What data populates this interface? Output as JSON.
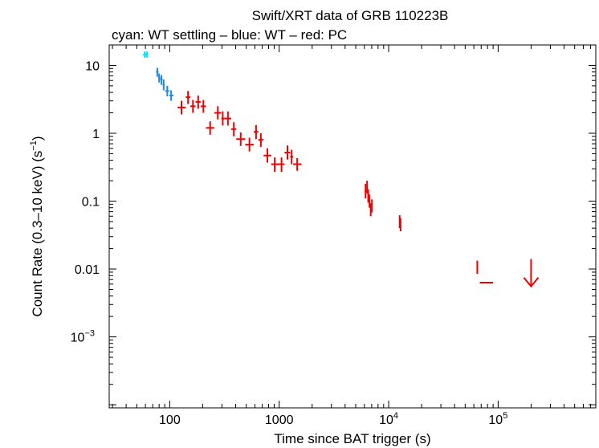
{
  "chart_data": {
    "type": "scatter",
    "title": "Swift/XRT data of GRB 110223B",
    "subtitle": "cyan: WT settling – blue: WT – red: PC",
    "xlabel": "Time since BAT trigger (s)",
    "ylabel_main": "Count Rate (0.3–10 keV) (s",
    "ylabel_sup": "−1",
    "ylabel_close": ")",
    "xscale": "log",
    "yscale": "log",
    "xlim": [
      28,
      780000
    ],
    "ylim": [
      9e-05,
      20
    ],
    "x_ticks": [
      {
        "value": 100,
        "label": "100"
      },
      {
        "value": 1000,
        "label": "1000"
      },
      {
        "value": 10000,
        "base": "10",
        "exp": "4"
      },
      {
        "value": 100000,
        "base": "10",
        "exp": "5"
      }
    ],
    "y_ticks": [
      {
        "value": 10,
        "label": "10"
      },
      {
        "value": 1,
        "label": "1"
      },
      {
        "value": 0.1,
        "label": "0.1"
      },
      {
        "value": 0.01,
        "label": "0.01"
      },
      {
        "value": 0.001,
        "base": "10",
        "exp": "−3"
      }
    ],
    "series": [
      {
        "name": "WT settling",
        "color": "#00e5ff",
        "points": [
          {
            "x": 59,
            "xlo": 57,
            "xhi": 61,
            "y": 14.5,
            "ylo": 13.0,
            "yhi": 16.0
          },
          {
            "x": 62,
            "xlo": 60.5,
            "xhi": 63.5,
            "y": 14.5,
            "ylo": 13.0,
            "yhi": 16.0
          }
        ]
      },
      {
        "name": "WT",
        "color": "#1e88e5",
        "points": [
          {
            "x": 77,
            "xlo": 75,
            "xhi": 79,
            "y": 8.0,
            "ylo": 6.8,
            "yhi": 9.2
          },
          {
            "x": 80,
            "xlo": 78.5,
            "xhi": 82,
            "y": 6.5,
            "ylo": 5.6,
            "yhi": 7.6
          },
          {
            "x": 84,
            "xlo": 82,
            "xhi": 86,
            "y": 6.2,
            "ylo": 5.2,
            "yhi": 7.2
          },
          {
            "x": 88,
            "xlo": 86,
            "xhi": 90,
            "y": 5.2,
            "ylo": 4.3,
            "yhi": 6.2
          },
          {
            "x": 95,
            "xlo": 91,
            "xhi": 99,
            "y": 4.2,
            "ylo": 3.5,
            "yhi": 5.0
          },
          {
            "x": 103,
            "xlo": 99,
            "xhi": 108,
            "y": 3.6,
            "ylo": 3.0,
            "yhi": 4.3
          }
        ]
      },
      {
        "name": "PC",
        "color": "#ee0000",
        "points": [
          {
            "x": 128,
            "xlo": 118,
            "xhi": 140,
            "y": 2.4,
            "ylo": 1.9,
            "yhi": 3.0
          },
          {
            "x": 147,
            "xlo": 140,
            "xhi": 154,
            "y": 3.4,
            "ylo": 2.7,
            "yhi": 4.2
          },
          {
            "x": 163,
            "xlo": 154,
            "xhi": 172,
            "y": 2.5,
            "ylo": 2.0,
            "yhi": 3.1
          },
          {
            "x": 182,
            "xlo": 172,
            "xhi": 192,
            "y": 2.9,
            "ylo": 2.3,
            "yhi": 3.6
          },
          {
            "x": 203,
            "xlo": 192,
            "xhi": 214,
            "y": 2.5,
            "ylo": 2.0,
            "yhi": 3.1
          },
          {
            "x": 234,
            "xlo": 214,
            "xhi": 255,
            "y": 1.2,
            "ylo": 0.95,
            "yhi": 1.5
          },
          {
            "x": 275,
            "xlo": 255,
            "xhi": 296,
            "y": 2.0,
            "ylo": 1.6,
            "yhi": 2.5
          },
          {
            "x": 305,
            "xlo": 296,
            "xhi": 315,
            "y": 1.65,
            "ylo": 1.3,
            "yhi": 2.1
          },
          {
            "x": 340,
            "xlo": 315,
            "xhi": 365,
            "y": 1.65,
            "ylo": 1.3,
            "yhi": 2.1
          },
          {
            "x": 385,
            "xlo": 365,
            "xhi": 405,
            "y": 1.15,
            "ylo": 0.9,
            "yhi": 1.45
          },
          {
            "x": 445,
            "xlo": 405,
            "xhi": 490,
            "y": 0.82,
            "ylo": 0.65,
            "yhi": 1.03
          },
          {
            "x": 535,
            "xlo": 490,
            "xhi": 585,
            "y": 0.68,
            "ylo": 0.54,
            "yhi": 0.86
          },
          {
            "x": 615,
            "xlo": 585,
            "xhi": 645,
            "y": 1.05,
            "ylo": 0.82,
            "yhi": 1.32
          },
          {
            "x": 680,
            "xlo": 645,
            "xhi": 720,
            "y": 0.8,
            "ylo": 0.63,
            "yhi": 1.0
          },
          {
            "x": 780,
            "xlo": 720,
            "xhi": 845,
            "y": 0.47,
            "ylo": 0.37,
            "yhi": 0.6
          },
          {
            "x": 910,
            "xlo": 845,
            "xhi": 980,
            "y": 0.35,
            "ylo": 0.27,
            "yhi": 0.44
          },
          {
            "x": 1050,
            "xlo": 980,
            "xhi": 1120,
            "y": 0.35,
            "ylo": 0.27,
            "yhi": 0.44
          },
          {
            "x": 1190,
            "xlo": 1120,
            "xhi": 1260,
            "y": 0.52,
            "ylo": 0.41,
            "yhi": 0.66
          },
          {
            "x": 1300,
            "xlo": 1260,
            "xhi": 1340,
            "y": 0.45,
            "ylo": 0.35,
            "yhi": 0.57
          },
          {
            "x": 1460,
            "xlo": 1340,
            "xhi": 1600,
            "y": 0.35,
            "ylo": 0.28,
            "yhi": 0.43
          },
          {
            "x": 6150,
            "xlo": 6020,
            "xhi": 6280,
            "y": 0.14,
            "ylo": 0.11,
            "yhi": 0.18
          },
          {
            "x": 6350,
            "xlo": 6280,
            "xhi": 6420,
            "y": 0.16,
            "ylo": 0.13,
            "yhi": 0.2
          },
          {
            "x": 6500,
            "xlo": 6420,
            "xhi": 6580,
            "y": 0.12,
            "ylo": 0.095,
            "yhi": 0.15
          },
          {
            "x": 6670,
            "xlo": 6580,
            "xhi": 6760,
            "y": 0.1,
            "ylo": 0.08,
            "yhi": 0.125
          },
          {
            "x": 6850,
            "xlo": 6760,
            "xhi": 6940,
            "y": 0.075,
            "ylo": 0.06,
            "yhi": 0.093
          },
          {
            "x": 7030,
            "xlo": 6940,
            "xhi": 7120,
            "y": 0.085,
            "ylo": 0.068,
            "yhi": 0.106
          },
          {
            "x": 12600,
            "xlo": 12450,
            "xhi": 12750,
            "y": 0.05,
            "ylo": 0.04,
            "yhi": 0.062
          },
          {
            "x": 12850,
            "xlo": 12750,
            "xhi": 12950,
            "y": 0.045,
            "ylo": 0.036,
            "yhi": 0.056
          },
          {
            "x": 64500,
            "xlo": 63500,
            "xhi": 65500,
            "y": 0.0108,
            "ylo": 0.0085,
            "yhi": 0.0133
          },
          {
            "x": 78000,
            "xlo": 68000,
            "xhi": 90000,
            "y": 0.0063,
            "ylo": 0.0063,
            "yhi": 0.0063
          }
        ]
      }
    ],
    "upper_limits": [
      {
        "x": 200000,
        "y": 0.014,
        "color": "#ee0000"
      }
    ]
  }
}
